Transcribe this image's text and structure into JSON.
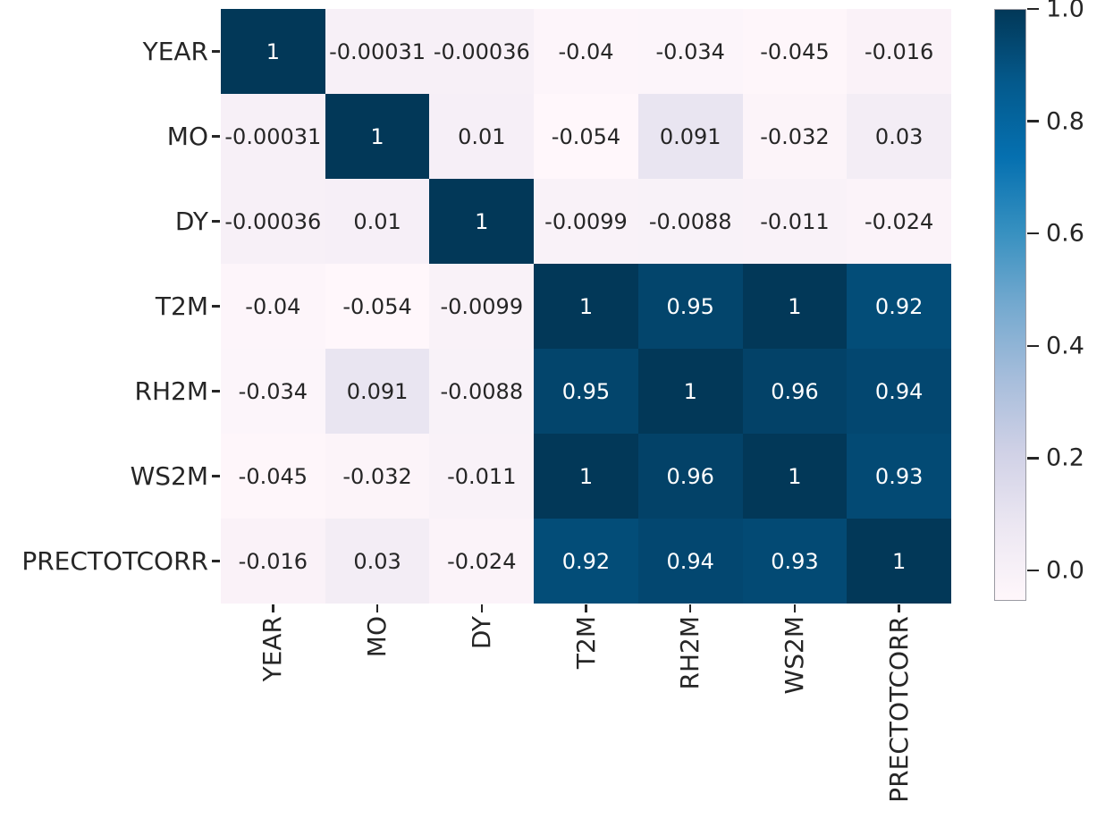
{
  "figure": {
    "background": "#ffffff",
    "text_color": "#262626"
  },
  "chart_data": {
    "type": "heatmap",
    "title": "",
    "xlabel": "",
    "ylabel": "",
    "categories": [
      "YEAR",
      "MO",
      "DY",
      "T2M",
      "RH2M",
      "WS2M",
      "PRECTOTCORR"
    ],
    "matrix": [
      [
        "1",
        "-0.00031",
        "-0.00036",
        "-0.04",
        "-0.034",
        "-0.045",
        "-0.016"
      ],
      [
        "-0.00031",
        "1",
        "0.01",
        "-0.054",
        "0.091",
        "-0.032",
        "0.03"
      ],
      [
        "-0.00036",
        "0.01",
        "1",
        "-0.0099",
        "-0.0088",
        "-0.011",
        "-0.024"
      ],
      [
        "-0.04",
        "-0.054",
        "-0.0099",
        "1",
        "0.95",
        "1",
        "0.92"
      ],
      [
        "-0.034",
        "0.091",
        "-0.0088",
        "0.95",
        "1",
        "0.96",
        "0.94"
      ],
      [
        "-0.045",
        "-0.032",
        "-0.011",
        "1",
        "0.96",
        "1",
        "0.93"
      ],
      [
        "-0.016",
        "0.03",
        "-0.024",
        "0.92",
        "0.94",
        "0.93",
        "1"
      ]
    ],
    "vmin": -0.054,
    "vmax": 1.0,
    "grid": false,
    "legend_position": "right-colorbar",
    "colorbar_ticks": [
      "1.0",
      "0.8",
      "0.6",
      "0.4",
      "0.2",
      "0.0"
    ],
    "colormap": {
      "name": "PuBu",
      "stops": [
        [
          0.0,
          "#fff7fb"
        ],
        [
          0.125,
          "#ece7f2"
        ],
        [
          0.25,
          "#d0d1e6"
        ],
        [
          0.375,
          "#a6bddb"
        ],
        [
          0.5,
          "#74a9cf"
        ],
        [
          0.625,
          "#3690c0"
        ],
        [
          0.75,
          "#0570b0"
        ],
        [
          0.875,
          "#045a8d"
        ],
        [
          1.0,
          "#023858"
        ]
      ]
    },
    "annotation_text_dark": "#262626",
    "annotation_text_light": "#ffffff"
  }
}
